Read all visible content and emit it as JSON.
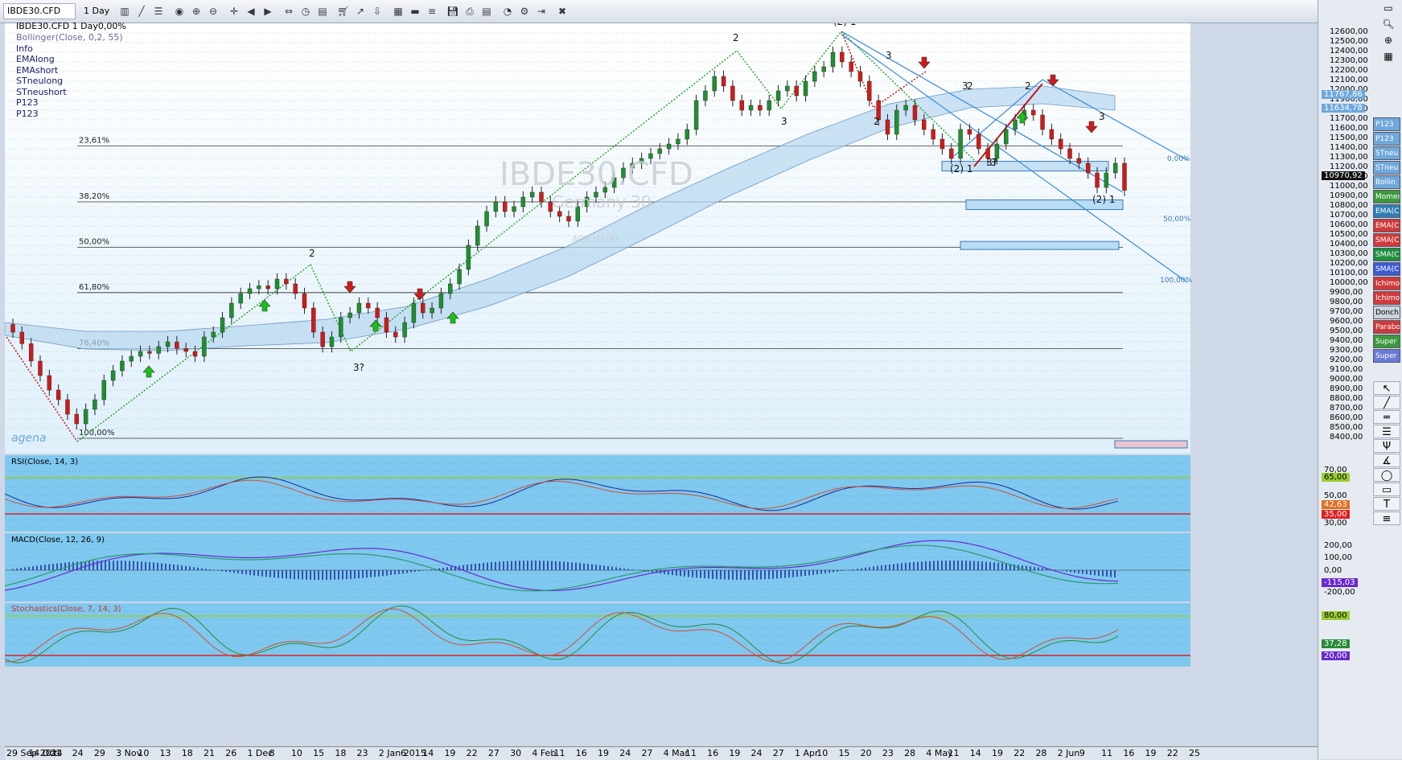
{
  "toolbar": {
    "symbol": "IBDE30.CFD",
    "timeframe": "1 Day",
    "icons": [
      "chart-type-icon",
      "draw-line-icon",
      "object-list-icon",
      "indicator-icon",
      "zoom-in-icon",
      "zoom-out-icon",
      "crosshair-icon",
      "back-icon",
      "forward-icon",
      "bar-spacing-icon",
      "clock-icon",
      "template-icon",
      "cart-icon",
      "trend-icon",
      "export-icon",
      "grid-icon",
      "color-bar-icon",
      "fib-icon",
      "save-icon",
      "print-icon",
      "table-icon",
      "pie-icon",
      "tools-icon",
      "exit-icon",
      "close-icon"
    ]
  },
  "legend": {
    "title": "IBDE30.CFD 1 Day0,00%",
    "items": [
      "Bollinger(Close, 0,2, 55)",
      "Info",
      "EMAlong",
      "EMAshort",
      "STneulong",
      "STneushort",
      "P123",
      "P123"
    ]
  },
  "watermark": {
    "symbol": "IBDE30.CFD",
    "name": "Germany 30",
    "currency": "ACB (EUR)",
    "logo": "agena"
  },
  "fib_levels": [
    {
      "label": "23,61%",
      "price": 11430
    },
    {
      "label": "38,20%",
      "price": 10850
    },
    {
      "label": "50,00%",
      "price": 10380
    },
    {
      "label": "61,80%",
      "price": 9910
    },
    {
      "label": "76,40%",
      "price": 9330
    },
    {
      "label": "100,00%",
      "price": 8400
    }
  ],
  "fib_ext_labels": [
    "0,00%",
    "50,00%",
    "100,00%"
  ],
  "price_axis": {
    "ticks": [
      "12600,00",
      "12500,00",
      "12400,00",
      "12300,00",
      "12200,00",
      "12100,00",
      "12000,00",
      "11900,00",
      "11800,00",
      "11700,00",
      "11600,00",
      "11500,00",
      "11400,00",
      "11300,00",
      "11200,00",
      "11100,00",
      "11000,00",
      "10900,00",
      "10800,00",
      "10700,00",
      "10600,00",
      "10500,00",
      "10400,00",
      "10300,00",
      "10200,00",
      "10100,00",
      "10000,00",
      "9900,00",
      "9800,00",
      "9700,00",
      "9600,00",
      "9500,00",
      "9400,00",
      "9300,00",
      "9200,00",
      "9100,00",
      "9000,00",
      "8900,00",
      "8800,00",
      "8700,00",
      "8600,00",
      "8500,00",
      "8400,00"
    ],
    "current_price": "10970,92",
    "upper_band": "11767,86",
    "mid_band": "11634,78"
  },
  "wave_labels": [
    "2",
    "2",
    "(2) 1",
    "2",
    "3",
    "2",
    "3",
    "2",
    "(2) 1",
    "3",
    "(2) 1",
    "3?",
    "3?",
    "3",
    "3"
  ],
  "rsi": {
    "label": "RSI(Close, 14, 3)",
    "ticks": [
      "70,00",
      "50,00",
      "30,00"
    ],
    "upper": "65,00",
    "value": "42,63",
    "lower": "35,00"
  },
  "macd": {
    "label": "MACD(Close, 12, 26, 9)",
    "ticks": [
      "200,00",
      "100,00",
      "-200,00"
    ],
    "zero": "0,00",
    "value": "-115,03"
  },
  "stoch": {
    "label": "Stochastics(Close, 7, 14, 3)",
    "ticks": [
      "80,00",
      "20,00"
    ],
    "upper": "80,00",
    "value": "37,28",
    "lower": "20,00"
  },
  "x_axis": [
    "29 Sep 2014",
    "14 Oct",
    "21",
    "24",
    "29",
    "3 Nov",
    "10",
    "13",
    "18",
    "21",
    "26",
    "1 Dec",
    "8",
    "10",
    "15",
    "18",
    "23",
    "2 Jan 2015",
    "6",
    "14",
    "19",
    "22",
    "27",
    "30",
    "4 Feb",
    "11",
    "16",
    "19",
    "24",
    "27",
    "4 Mar",
    "11",
    "16",
    "19",
    "24",
    "27",
    "1 Apr",
    "10",
    "15",
    "20",
    "23",
    "28",
    "4 May",
    "11",
    "14",
    "19",
    "22",
    "28",
    "2 Jun",
    "9",
    "11",
    "16",
    "19",
    "22",
    "25"
  ],
  "right_indicators": [
    {
      "label": "P123",
      "color": "#6fa8dc"
    },
    {
      "label": "P123",
      "color": "#6fa8dc"
    },
    {
      "label": "STneu",
      "color": "#6fa8dc"
    },
    {
      "label": "STneu",
      "color": "#6fa8dc"
    },
    {
      "label": "Bollin",
      "color": "#6fa8dc"
    },
    {
      "label": "Momen",
      "color": "#3c9a3c"
    },
    {
      "label": "EMA(C",
      "color": "#2f7fb5"
    },
    {
      "label": "EMA(C",
      "color": "#d03a3a"
    },
    {
      "label": "SMA(C",
      "color": "#d03a3a"
    },
    {
      "label": "SMA(C",
      "color": "#1e8f3e"
    },
    {
      "label": "SMA(C",
      "color": "#3b5bd4"
    },
    {
      "label": "Ichimo",
      "color": "#d03a3a"
    },
    {
      "label": "Ichimo",
      "color": "#d03a3a"
    },
    {
      "label": "Donch",
      "color": "#cdd3dc"
    },
    {
      "label": "Parabo",
      "color": "#d03a3a"
    },
    {
      "label": "Super",
      "color": "#3c9a3c"
    },
    {
      "label": "Super",
      "color": "#6a7bd8"
    }
  ],
  "draw_tools": [
    "pointer-tool",
    "trendline-tool",
    "hline-tool",
    "channel-tool",
    "fork-tool",
    "fan-tool",
    "ellipse-tool",
    "rectangle-tool",
    "text-tool",
    "fib-tool"
  ]
}
